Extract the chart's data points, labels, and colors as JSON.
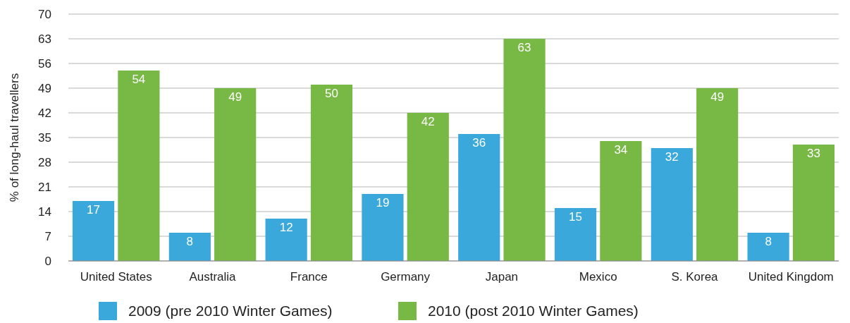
{
  "chart_data": {
    "type": "bar",
    "ylabel": "% of long-haul travellers",
    "categories": [
      "United States",
      "Australia",
      "France",
      "Germany",
      "Japan",
      "Mexico",
      "S. Korea",
      "United Kingdom"
    ],
    "series": [
      {
        "name": "2009 (pre 2010 Winter Games)",
        "color": "#3ba8dc",
        "values": [
          17,
          8,
          12,
          19,
          36,
          15,
          32,
          8
        ]
      },
      {
        "name": "2010 (post 2010 Winter Games)",
        "color": "#78b845",
        "values": [
          54,
          49,
          50,
          42,
          63,
          34,
          49,
          33
        ]
      }
    ],
    "ylim": [
      0,
      70
    ],
    "yticks": [
      0,
      7,
      14,
      21,
      28,
      35,
      42,
      49,
      56,
      63,
      70
    ],
    "grid": "y",
    "legend": "bottom",
    "data_labels": true
  }
}
